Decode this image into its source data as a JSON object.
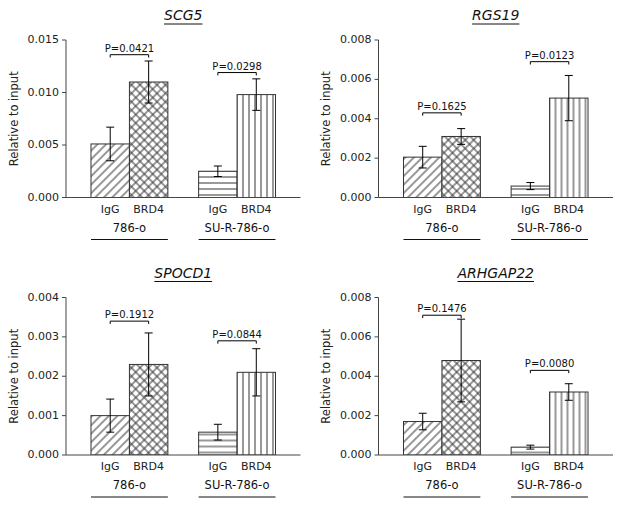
{
  "chart_data": [
    {
      "type": "bar",
      "title": "SCG5",
      "ylabel": "Relative to input",
      "categories": [
        "IgG",
        "BRD4",
        "IgG",
        "BRD4"
      ],
      "groups": [
        "786-o",
        "SU-R-786-o"
      ],
      "values": [
        0.0051,
        0.011,
        0.0025,
        0.0098
      ],
      "errors": [
        0.0016,
        0.002,
        0.0005,
        0.0015
      ],
      "annotations": [
        {
          "text": "P=0.0421",
          "x1": 0,
          "x2": 1,
          "y": 0.0136
        },
        {
          "text": "P=0.0298",
          "x1": 2,
          "x2": 3,
          "y": 0.0119
        }
      ],
      "ylim": [
        0,
        0.015
      ],
      "yticks": [
        {
          "value": 0,
          "label": "0.000"
        },
        0.005,
        {
          "value": 0.01,
          "label": "0.010"
        },
        0.015
      ],
      "grid": false,
      "color": "#333333"
    },
    {
      "type": "bar",
      "title": "RGS19",
      "ylabel": "Relative to input",
      "categories": [
        "IgG",
        "BRD4",
        "IgG",
        "BRD4"
      ],
      "groups": [
        "786-o",
        "SU-R-786-o"
      ],
      "values": [
        0.00205,
        0.0031,
        0.00058,
        0.00505
      ],
      "errors": [
        0.00055,
        0.0004,
        0.00018,
        0.00115
      ],
      "annotations": [
        {
          "text": "P=0.1625",
          "x1": 0,
          "x2": 1,
          "y": 0.0043
        },
        {
          "text": "P=0.0123",
          "x1": 2,
          "x2": 3,
          "y": 0.0069
        }
      ],
      "ylim": [
        0,
        0.008
      ],
      "yticks": [
        {
          "value": 0,
          "label": "0.000"
        },
        0.002,
        0.004,
        0.006,
        0.008
      ],
      "grid": false,
      "color": "#333333"
    },
    {
      "type": "bar",
      "title": "SPOCD1",
      "ylabel": "Relative to input",
      "categories": [
        "IgG",
        "BRD4",
        "IgG",
        "BRD4"
      ],
      "groups": [
        "786-o",
        "SU-R-786-o"
      ],
      "values": [
        0.001,
        0.0023,
        0.00058,
        0.0021
      ],
      "errors": [
        0.00042,
        0.0008,
        0.0002,
        0.0006
      ],
      "annotations": [
        {
          "text": "P=0.1912",
          "x1": 0,
          "x2": 1,
          "y": 0.0034
        },
        {
          "text": "P=0.0844",
          "x1": 2,
          "x2": 3,
          "y": 0.0029
        }
      ],
      "ylim": [
        0,
        0.004
      ],
      "yticks": [
        {
          "value": 0,
          "label": "0.000"
        },
        0.001,
        0.002,
        0.003,
        0.004
      ],
      "grid": false,
      "color": "#333333"
    },
    {
      "type": "bar",
      "title": "ARHGAP22",
      "ylabel": "Relative to input",
      "categories": [
        "IgG",
        "BRD4",
        "IgG",
        "BRD4"
      ],
      "groups": [
        "786-o",
        "SU-R-786-o"
      ],
      "values": [
        0.0017,
        0.0048,
        0.0004,
        0.0032
      ],
      "errors": [
        0.00042,
        0.0021,
        0.0001,
        0.00042
      ],
      "annotations": [
        {
          "text": "P=0.1476",
          "x1": 0,
          "x2": 1,
          "y": 0.0071
        },
        {
          "text": "P=0.0080",
          "x1": 2,
          "x2": 3,
          "y": 0.0043
        }
      ],
      "ylim": [
        0,
        0.008
      ],
      "yticks": [
        {
          "value": 0,
          "label": "0.000"
        },
        0.002,
        0.004,
        0.006,
        0.008
      ],
      "grid": false,
      "color": "#333333"
    }
  ]
}
